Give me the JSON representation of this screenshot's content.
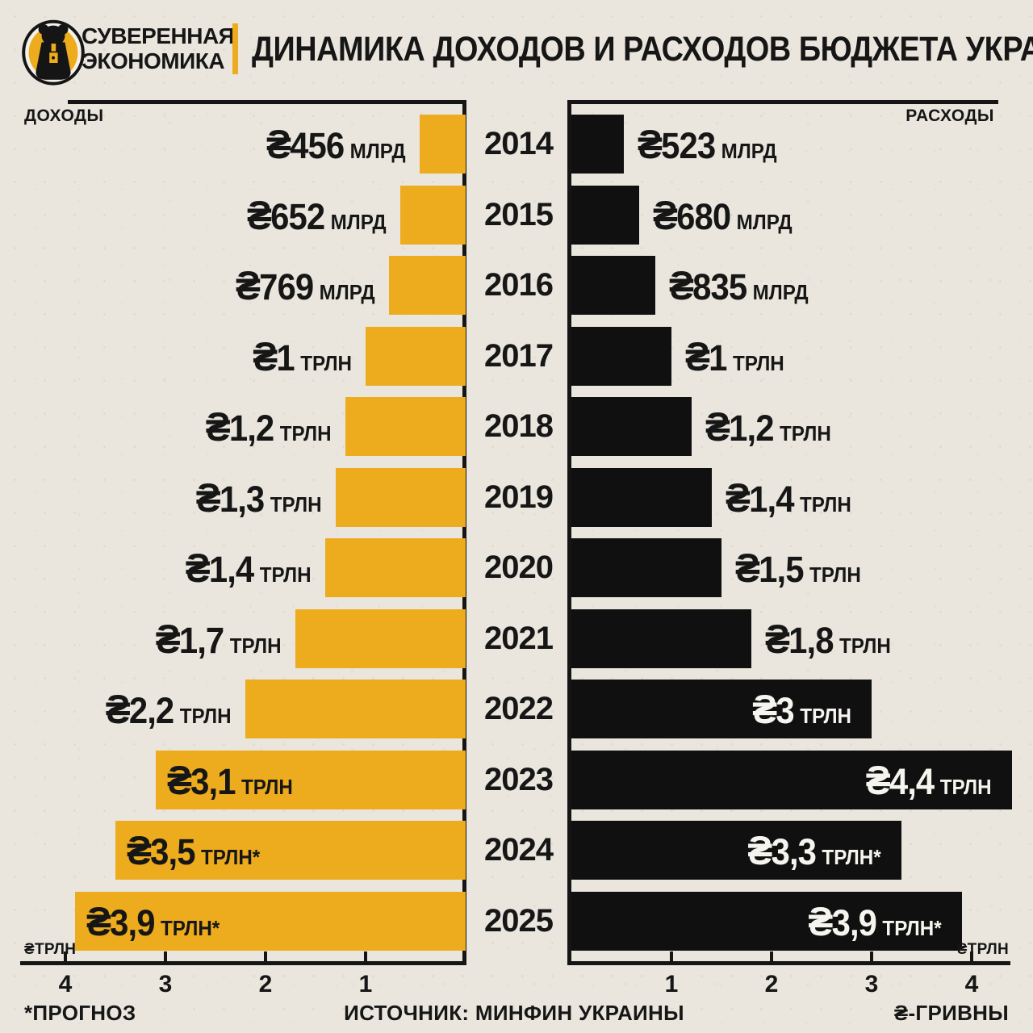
{
  "header": {
    "logo_line1": "СУВЕРЕННАЯ",
    "logo_line2": "ЭКОНОМИКА",
    "title": "ДИНАМИКА ДОХОДОВ И РАСХОДОВ БЮДЖЕТА УКРАИНЫ"
  },
  "panels": {
    "left_label": "ДОХОДЫ",
    "right_label": "РАСХОДЫ"
  },
  "axis": {
    "left_unit": "₴ТРЛН",
    "right_unit": "₴ТРЛН",
    "left_ticks": [
      "4",
      "3",
      "2",
      "1"
    ],
    "right_ticks": [
      "1",
      "2",
      "3",
      "4"
    ]
  },
  "footer": {
    "note": "*ПРОГНОЗ",
    "source": "ИСТОЧНИК: МИНФИН УКРАИНЫ",
    "currency": "₴-ГРИВНЫ"
  },
  "colors": {
    "background": "#eae6dd",
    "accent": "#EDAB1E",
    "ink": "#161616",
    "bar_dark": "#101010",
    "label_on_dark": "#f6f4ee"
  },
  "chart_data": {
    "type": "bar",
    "subtype": "butterfly",
    "unit": "трлн гривен",
    "axis_max_trln": 4.5,
    "tick_step_trln": 1,
    "categories": [
      "2014",
      "2015",
      "2016",
      "2017",
      "2018",
      "2019",
      "2020",
      "2021",
      "2022",
      "2023",
      "2024",
      "2025"
    ],
    "series": [
      {
        "name": "ДОХОДЫ",
        "side": "left",
        "color": "#EDAB1E",
        "values_trln": [
          0.456,
          0.652,
          0.769,
          1.0,
          1.2,
          1.3,
          1.4,
          1.7,
          2.2,
          3.1,
          3.5,
          3.9
        ],
        "labels": [
          {
            "currency": "₴",
            "num": "456",
            "unit": "МЛРД",
            "forecast": false
          },
          {
            "currency": "₴",
            "num": "652",
            "unit": "МЛРД",
            "forecast": false
          },
          {
            "currency": "₴",
            "num": "769",
            "unit": "МЛРД",
            "forecast": false
          },
          {
            "currency": "₴",
            "num": "1",
            "unit": "ТРЛН",
            "forecast": false
          },
          {
            "currency": "₴",
            "num": "1,2",
            "unit": "ТРЛН",
            "forecast": false
          },
          {
            "currency": "₴",
            "num": "1,3",
            "unit": "ТРЛН",
            "forecast": false
          },
          {
            "currency": "₴",
            "num": "1,4",
            "unit": "ТРЛН",
            "forecast": false
          },
          {
            "currency": "₴",
            "num": "1,7",
            "unit": "ТРЛН",
            "forecast": false
          },
          {
            "currency": "₴",
            "num": "2,2",
            "unit": "ТРЛН",
            "forecast": false
          },
          {
            "currency": "₴",
            "num": "3,1",
            "unit": "ТРЛН",
            "forecast": false
          },
          {
            "currency": "₴",
            "num": "3,5",
            "unit": "ТРЛН*",
            "forecast": true
          },
          {
            "currency": "₴",
            "num": "3,9",
            "unit": "ТРЛН*",
            "forecast": true
          }
        ]
      },
      {
        "name": "РАСХОДЫ",
        "side": "right",
        "color": "#101010",
        "values_trln": [
          0.523,
          0.68,
          0.835,
          1.0,
          1.2,
          1.4,
          1.5,
          1.8,
          3.0,
          4.4,
          3.3,
          3.9
        ],
        "labels": [
          {
            "currency": "₴",
            "num": "523",
            "unit": "МЛРД",
            "forecast": false
          },
          {
            "currency": "₴",
            "num": "680",
            "unit": "МЛРД",
            "forecast": false
          },
          {
            "currency": "₴",
            "num": "835",
            "unit": "МЛРД",
            "forecast": false
          },
          {
            "currency": "₴",
            "num": "1",
            "unit": "ТРЛН",
            "forecast": false
          },
          {
            "currency": "₴",
            "num": "1,2",
            "unit": "ТРЛН",
            "forecast": false
          },
          {
            "currency": "₴",
            "num": "1,4",
            "unit": "ТРЛН",
            "forecast": false
          },
          {
            "currency": "₴",
            "num": "1,5",
            "unit": "ТРЛН",
            "forecast": false
          },
          {
            "currency": "₴",
            "num": "1,8",
            "unit": "ТРЛН",
            "forecast": false
          },
          {
            "currency": "₴",
            "num": "3",
            "unit": "ТРЛН",
            "forecast": false
          },
          {
            "currency": "₴",
            "num": "4,4",
            "unit": "ТРЛН",
            "forecast": false
          },
          {
            "currency": "₴",
            "num": "3,3",
            "unit": "ТРЛН*",
            "forecast": true
          },
          {
            "currency": "₴",
            "num": "3,9",
            "unit": "ТРЛН*",
            "forecast": true
          }
        ]
      }
    ]
  }
}
